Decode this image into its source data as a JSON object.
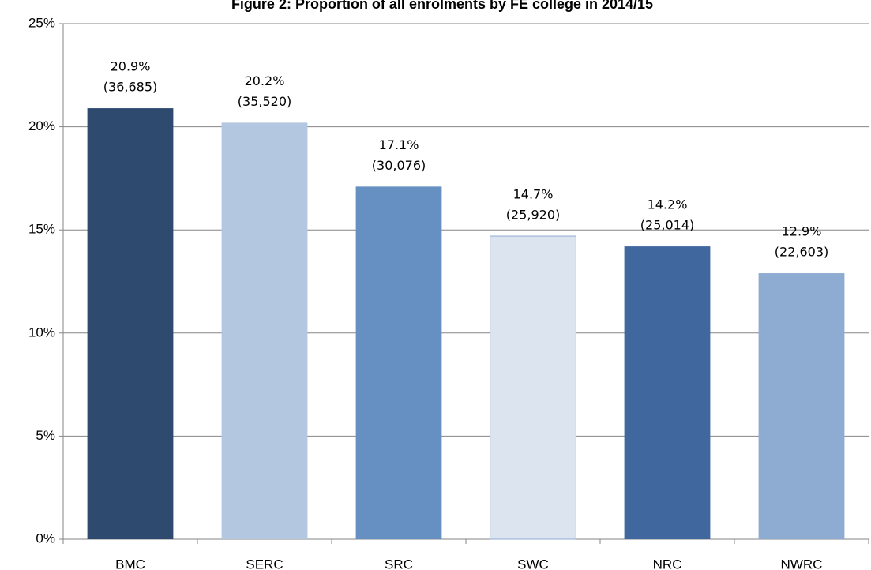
{
  "chart_data": {
    "type": "bar",
    "title": "Figure 2: Proportion of all enrolments by FE college in 2014/15",
    "categories": [
      "BMC",
      "SERC",
      "SRC",
      "SWC",
      "NRC",
      "NWRC"
    ],
    "values": [
      20.9,
      20.2,
      17.1,
      14.7,
      14.2,
      12.9
    ],
    "value_labels": [
      "20.9%",
      "20.2%",
      "17.1%",
      "14.7%",
      "14.2%",
      "12.9%"
    ],
    "enrolment_labels": [
      "(36,685)",
      "(35,520)",
      "(30,076)",
      "(25,920)",
      "(25,014)",
      "(22,603)"
    ],
    "colors": [
      "#2e4a6e",
      "#b3c7e0",
      "#6690c2",
      "#dce4f0",
      "#41689e",
      "#8eabd2"
    ],
    "ylim": [
      0,
      25
    ],
    "yticks": [
      {
        "value": 0,
        "label": "0%"
      },
      {
        "value": 5,
        "label": "5%"
      },
      {
        "value": 10,
        "label": "10%"
      },
      {
        "value": 15,
        "label": "15%"
      },
      {
        "value": 20,
        "label": "20%"
      },
      {
        "value": 25,
        "label": "25%"
      }
    ],
    "grid": true
  }
}
